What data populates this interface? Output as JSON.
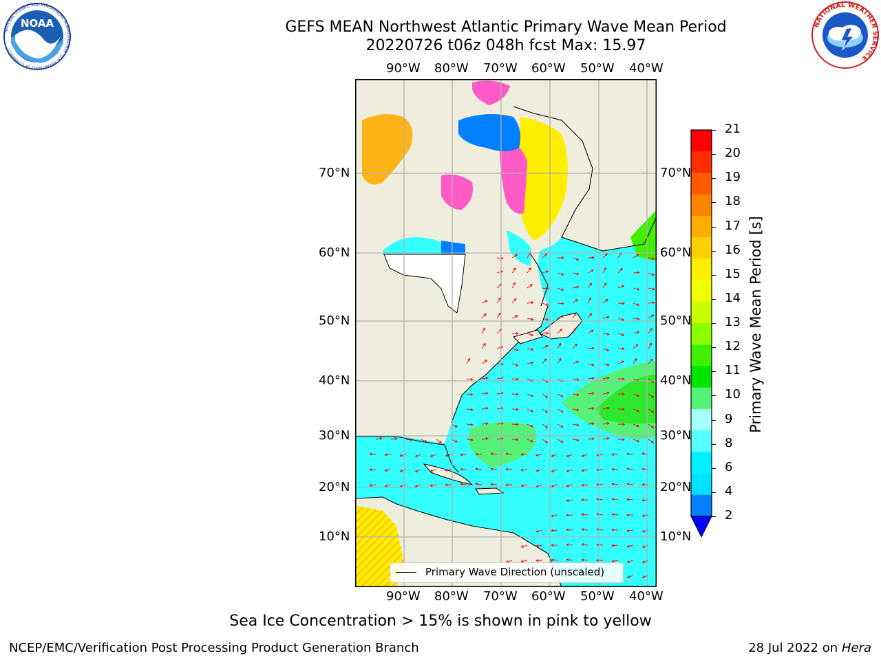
{
  "header": {
    "title": "GEFS MEAN Northwest Atlantic Primary Wave Mean Period",
    "subtitle": "20220726 t06z 048h fcst   Max: 15.97"
  },
  "logos": {
    "noaa_text": "NOAA",
    "noaa_ring_text": "NATIONAL OCEANIC AND ATMOSPHERIC ADMINISTRATION · U.S. DEPARTMENT OF COMMERCE",
    "nws_ring_text": "NATIONAL WEATHER SERVICE"
  },
  "map": {
    "lon_labels": [
      "90°W",
      "80°W",
      "70°W",
      "60°W",
      "50°W",
      "40°W"
    ],
    "lat_labels": [
      "70°N",
      "60°N",
      "50°N",
      "40°N",
      "30°N",
      "20°N",
      "10°N"
    ],
    "ocean_color": "#33ffff",
    "land_color": "#efedde",
    "vector_color": "#ff0000",
    "legend_text": "Primary Wave Direction (unscaled)"
  },
  "colorbar": {
    "title": "Primary Wave Mean Period [s]",
    "ticks": [
      "21",
      "20",
      "19",
      "18",
      "17",
      "16",
      "15",
      "14",
      "13",
      "12",
      "11",
      "10",
      "9",
      "8",
      "6",
      "4",
      "2"
    ],
    "colors_top_to_bottom": [
      "#ff0000",
      "#ff2e00",
      "#ff5a00",
      "#ff8400",
      "#ffac00",
      "#ffcf00",
      "#ffee00",
      "#f0ff00",
      "#c8ff00",
      "#8cff00",
      "#40f000",
      "#00e600",
      "#55f27a",
      "#a6ffff",
      "#55ffff",
      "#00f0ff",
      "#00e0ff",
      "#0080ff"
    ],
    "extend_color": "#0000ff"
  },
  "notes": {
    "sea_ice": "Sea Ice Concentration > 15% is shown in pink to yellow"
  },
  "footer": {
    "left": "NCEP/EMC/Verification Post Processing Product Generation Branch",
    "right_date": "28 Jul 2022 on ",
    "right_machine": "Hera"
  }
}
